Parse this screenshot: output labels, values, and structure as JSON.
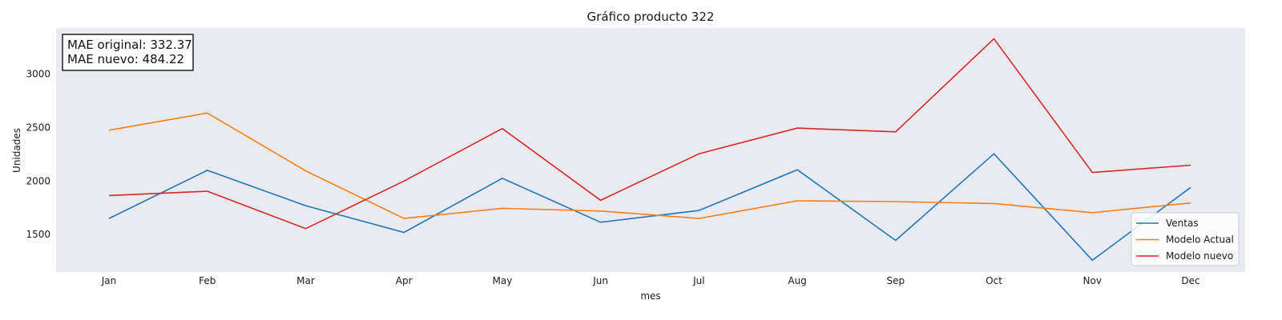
{
  "chart_data": {
    "type": "line",
    "title": "Gráfico producto 322",
    "xlabel": "mes",
    "ylabel": "Unidades",
    "categories": [
      "Jan",
      "Feb",
      "Mar",
      "Apr",
      "May",
      "Jun",
      "Jul",
      "Aug",
      "Sep",
      "Oct",
      "Nov",
      "Dec"
    ],
    "yticks": [
      1500,
      2000,
      2500,
      3000
    ],
    "ylim": [
      1150,
      3430
    ],
    "grid": false,
    "background": "#eaeaf2",
    "legend_position": "lower-right",
    "series": [
      {
        "name": "Ventas",
        "color": "#1f77b4",
        "values": [
          1650,
          2100,
          1770,
          1520,
          2025,
          1615,
          1725,
          2105,
          1445,
          2255,
          1260,
          1940
        ]
      },
      {
        "name": "Modelo Actual",
        "color": "#ff7f0e",
        "values": [
          2475,
          2635,
          2095,
          1650,
          1745,
          1720,
          1650,
          1815,
          1808,
          1790,
          1705,
          1795
        ]
      },
      {
        "name": "Modelo nuevo",
        "color": "#d62728",
        "values": [
          1865,
          1905,
          1555,
          2000,
          2490,
          1820,
          2255,
          2495,
          2460,
          3330,
          2080,
          2148
        ]
      }
    ],
    "annotations": [
      "MAE original: 332.37",
      "MAE nuevo: 484.22"
    ]
  }
}
